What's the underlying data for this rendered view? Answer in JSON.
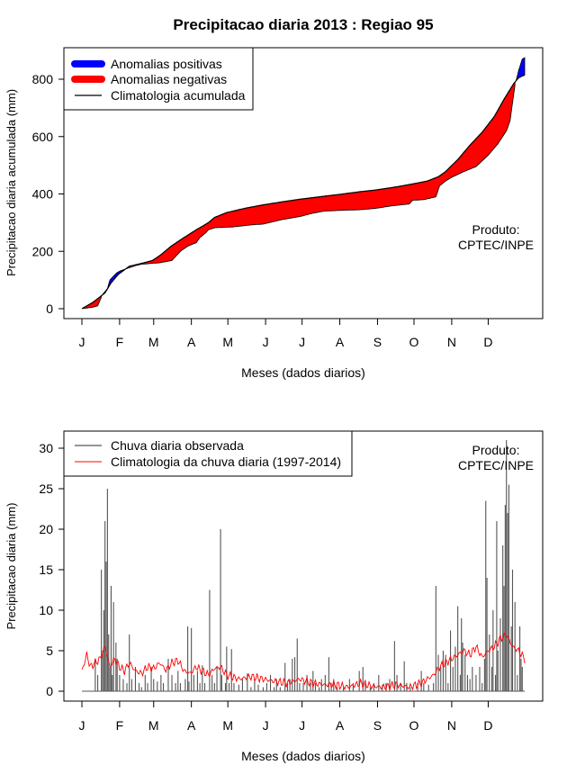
{
  "title": "Precipitacao diaria 2013 : Regiao 95",
  "chart_data": [
    {
      "type": "area",
      "name": "accumulated",
      "xlabel": "Meses (dados diarios)",
      "ylabel": "Precipitacao diaria acumulada (mm)",
      "xlim": [
        1,
        365
      ],
      "ylim": [
        0,
        860
      ],
      "yticks": [
        0,
        200,
        400,
        600,
        800
      ],
      "month_labels": [
        "J",
        "F",
        "M",
        "A",
        "M",
        "J",
        "J",
        "A",
        "S",
        "O",
        "N",
        "D"
      ],
      "legend": {
        "position": "top-left",
        "items": [
          "Anomalias positivas",
          "Anomalias negativas",
          "Climatologia acumulada"
        ]
      },
      "product_label": "Produto:",
      "product_value": "CPTEC/INPE",
      "colors": {
        "positive": "#0000ff",
        "negative": "#ff0000",
        "line": "#000000"
      },
      "climatology_knots": [
        [
          1,
          0
        ],
        [
          10,
          22
        ],
        [
          20,
          55
        ],
        [
          25,
          90
        ],
        [
          31,
          120
        ],
        [
          40,
          148
        ],
        [
          50,
          158
        ],
        [
          59,
          168
        ],
        [
          65,
          185
        ],
        [
          75,
          220
        ],
        [
          85,
          248
        ],
        [
          95,
          275
        ],
        [
          105,
          300
        ],
        [
          110,
          318
        ],
        [
          120,
          335
        ],
        [
          135,
          350
        ],
        [
          150,
          362
        ],
        [
          165,
          372
        ],
        [
          181,
          382
        ],
        [
          200,
          392
        ],
        [
          212,
          398
        ],
        [
          230,
          408
        ],
        [
          243,
          414
        ],
        [
          260,
          425
        ],
        [
          273,
          435
        ],
        [
          285,
          445
        ],
        [
          294,
          460
        ],
        [
          300,
          478
        ],
        [
          310,
          520
        ],
        [
          320,
          570
        ],
        [
          330,
          615
        ],
        [
          340,
          670
        ],
        [
          348,
          730
        ],
        [
          356,
          785
        ],
        [
          360,
          805
        ],
        [
          365,
          815
        ]
      ],
      "observed_knots": [
        [
          1,
          0
        ],
        [
          10,
          5
        ],
        [
          14,
          10
        ],
        [
          18,
          50
        ],
        [
          22,
          70
        ],
        [
          24,
          100
        ],
        [
          28,
          118
        ],
        [
          30,
          126
        ],
        [
          33,
          133
        ],
        [
          38,
          140
        ],
        [
          45,
          150
        ],
        [
          50,
          155
        ],
        [
          59,
          158
        ],
        [
          65,
          160
        ],
        [
          75,
          168
        ],
        [
          82,
          200
        ],
        [
          88,
          218
        ],
        [
          95,
          230
        ],
        [
          98,
          248
        ],
        [
          103,
          265
        ],
        [
          105,
          275
        ],
        [
          110,
          282
        ],
        [
          125,
          285
        ],
        [
          140,
          292
        ],
        [
          150,
          295
        ],
        [
          165,
          310
        ],
        [
          181,
          322
        ],
        [
          190,
          332
        ],
        [
          200,
          340
        ],
        [
          215,
          343
        ],
        [
          230,
          345
        ],
        [
          243,
          350
        ],
        [
          255,
          358
        ],
        [
          270,
          365
        ],
        [
          273,
          378
        ],
        [
          282,
          380
        ],
        [
          292,
          390
        ],
        [
          295,
          428
        ],
        [
          300,
          445
        ],
        [
          305,
          458
        ],
        [
          315,
          478
        ],
        [
          325,
          495
        ],
        [
          335,
          535
        ],
        [
          343,
          575
        ],
        [
          350,
          620
        ],
        [
          353,
          655
        ],
        [
          355,
          718
        ],
        [
          357,
          778
        ],
        [
          360,
          830
        ],
        [
          363,
          870
        ],
        [
          365,
          875
        ]
      ]
    },
    {
      "type": "bar",
      "name": "daily",
      "xlabel": "Meses (dados diarios)",
      "ylabel": "Precipitacao diaria (mm)",
      "xlim": [
        1,
        365
      ],
      "ylim": [
        0,
        31
      ],
      "yticks": [
        0,
        5,
        10,
        15,
        20,
        25,
        30
      ],
      "month_labels": [
        "J",
        "F",
        "M",
        "A",
        "M",
        "J",
        "J",
        "A",
        "S",
        "O",
        "N",
        "D"
      ],
      "legend": {
        "position": "top-left",
        "items": [
          "Chuva diaria observada",
          "Climatologia da chuva diaria (1997-2014)"
        ]
      },
      "product_label": "Produto:",
      "product_value": "CPTEC/INPE",
      "colors": {
        "bars": "#555555",
        "climatology": "#ff0000"
      },
      "bars_by_day": [
        [
          12,
          4
        ],
        [
          14,
          2
        ],
        [
          17,
          15
        ],
        [
          18,
          5
        ],
        [
          19,
          10
        ],
        [
          20,
          21
        ],
        [
          21,
          16
        ],
        [
          22,
          25
        ],
        [
          23,
          7
        ],
        [
          24,
          3
        ],
        [
          25,
          13
        ],
        [
          26,
          2
        ],
        [
          27,
          11
        ],
        [
          29,
          6
        ],
        [
          30,
          4
        ],
        [
          32,
          2
        ],
        [
          35,
          1.5
        ],
        [
          38,
          1
        ],
        [
          40,
          7
        ],
        [
          42,
          1.5
        ],
        [
          45,
          3
        ],
        [
          48,
          1
        ],
        [
          50,
          0.5
        ],
        [
          53,
          2
        ],
        [
          55,
          1
        ],
        [
          58,
          3
        ],
        [
          60,
          1.5
        ],
        [
          63,
          1.2
        ],
        [
          66,
          2
        ],
        [
          68,
          1
        ],
        [
          72,
          4
        ],
        [
          75,
          2
        ],
        [
          78,
          1
        ],
        [
          80,
          2.5
        ],
        [
          82,
          1
        ],
        [
          86,
          1.5
        ],
        [
          88,
          8
        ],
        [
          89,
          1.2
        ],
        [
          91,
          7.8
        ],
        [
          93,
          2
        ],
        [
          96,
          2.5
        ],
        [
          98,
          1
        ],
        [
          100,
          3.2
        ],
        [
          102,
          1
        ],
        [
          106,
          12.5
        ],
        [
          108,
          2
        ],
        [
          110,
          1
        ],
        [
          112,
          3
        ],
        [
          115,
          20
        ],
        [
          116,
          2
        ],
        [
          119,
          1
        ],
        [
          120,
          5.5
        ],
        [
          122,
          1
        ],
        [
          124,
          5.2
        ],
        [
          126,
          1
        ],
        [
          130,
          0.8
        ],
        [
          133,
          1.5
        ],
        [
          137,
          2.2
        ],
        [
          140,
          0.5
        ],
        [
          143,
          1.5
        ],
        [
          146,
          0.8
        ],
        [
          150,
          0.5
        ],
        [
          153,
          1
        ],
        [
          156,
          2
        ],
        [
          159,
          0.5
        ],
        [
          161,
          1.5
        ],
        [
          164,
          0.5
        ],
        [
          168,
          3.5
        ],
        [
          170,
          1
        ],
        [
          172,
          1.5
        ],
        [
          174,
          4
        ],
        [
          176,
          4.2
        ],
        [
          178,
          6.5
        ],
        [
          180,
          1
        ],
        [
          183,
          1
        ],
        [
          186,
          2
        ],
        [
          189,
          1
        ],
        [
          191,
          2.5
        ],
        [
          193,
          1
        ],
        [
          196,
          0.5
        ],
        [
          198,
          1.5
        ],
        [
          201,
          2
        ],
        [
          204,
          4.2
        ],
        [
          206,
          1
        ],
        [
          208,
          1.5
        ],
        [
          211,
          0.5
        ],
        [
          216,
          0.5
        ],
        [
          221,
          1.5
        ],
        [
          224,
          1
        ],
        [
          229,
          2.5
        ],
        [
          232,
          3
        ],
        [
          234,
          1
        ],
        [
          238,
          0.5
        ],
        [
          241,
          1
        ],
        [
          245,
          2
        ],
        [
          248,
          0.8
        ],
        [
          251,
          1
        ],
        [
          254,
          1.5
        ],
        [
          258,
          6.2
        ],
        [
          260,
          2
        ],
        [
          263,
          1
        ],
        [
          266,
          3.7
        ],
        [
          268,
          1
        ],
        [
          271,
          0.5
        ],
        [
          277,
          1
        ],
        [
          280,
          2.5
        ],
        [
          282,
          1
        ],
        [
          286,
          0.8
        ],
        [
          290,
          1
        ],
        [
          292,
          13
        ],
        [
          294,
          4.5
        ],
        [
          296,
          3
        ],
        [
          298,
          5
        ],
        [
          300,
          4.5
        ],
        [
          302,
          1
        ],
        [
          304,
          7.5
        ],
        [
          306,
          3
        ],
        [
          308,
          5.5
        ],
        [
          310,
          10.5
        ],
        [
          312,
          2
        ],
        [
          313,
          9
        ],
        [
          314,
          6
        ],
        [
          316,
          4.5
        ],
        [
          318,
          2
        ],
        [
          320,
          1.5
        ],
        [
          322,
          3
        ],
        [
          325,
          2
        ],
        [
          328,
          3
        ],
        [
          330,
          1
        ],
        [
          332,
          4
        ],
        [
          333,
          23.5
        ],
        [
          334,
          14
        ],
        [
          336,
          7
        ],
        [
          338,
          3
        ],
        [
          339,
          10
        ],
        [
          341,
          2
        ],
        [
          342,
          21
        ],
        [
          343,
          5
        ],
        [
          345,
          9
        ],
        [
          347,
          18
        ],
        [
          348,
          13
        ],
        [
          349,
          23
        ],
        [
          350,
          31
        ],
        [
          351,
          22
        ],
        [
          352,
          25.5
        ],
        [
          354,
          8
        ],
        [
          355,
          15
        ],
        [
          357,
          11
        ],
        [
          359,
          2
        ],
        [
          361,
          8
        ],
        [
          362,
          4
        ],
        [
          363,
          3
        ]
      ],
      "climatology_knots": [
        [
          1,
          2.5
        ],
        [
          5,
          4.5
        ],
        [
          8,
          3
        ],
        [
          12,
          3.5
        ],
        [
          16,
          4
        ],
        [
          20,
          5.5
        ],
        [
          24,
          3
        ],
        [
          28,
          4
        ],
        [
          32,
          3
        ],
        [
          36,
          2.5
        ],
        [
          40,
          3.5
        ],
        [
          45,
          2.5
        ],
        [
          50,
          2.2
        ],
        [
          55,
          3
        ],
        [
          60,
          2.8
        ],
        [
          65,
          3.5
        ],
        [
          70,
          2.6
        ],
        [
          75,
          3.5
        ],
        [
          80,
          3.8
        ],
        [
          85,
          2.5
        ],
        [
          90,
          2.2
        ],
        [
          95,
          3
        ],
        [
          100,
          2.5
        ],
        [
          105,
          2
        ],
        [
          110,
          2.8
        ],
        [
          115,
          3
        ],
        [
          120,
          2
        ],
        [
          130,
          1.5
        ],
        [
          140,
          1.8
        ],
        [
          150,
          1.5
        ],
        [
          160,
          1.2
        ],
        [
          170,
          1
        ],
        [
          180,
          1.5
        ],
        [
          190,
          1
        ],
        [
          200,
          0.8
        ],
        [
          210,
          0.8
        ],
        [
          220,
          0.5
        ],
        [
          230,
          1
        ],
        [
          240,
          0.6
        ],
        [
          250,
          0.5
        ],
        [
          260,
          0.8
        ],
        [
          270,
          0.5
        ],
        [
          280,
          1
        ],
        [
          285,
          1.5
        ],
        [
          290,
          2
        ],
        [
          295,
          3
        ],
        [
          300,
          3.5
        ],
        [
          305,
          4
        ],
        [
          310,
          4.5
        ],
        [
          315,
          5
        ],
        [
          320,
          4.5
        ],
        [
          325,
          5.5
        ],
        [
          330,
          4.2
        ],
        [
          335,
          5
        ],
        [
          340,
          5.5
        ],
        [
          345,
          6.5
        ],
        [
          350,
          7
        ],
        [
          355,
          5.5
        ],
        [
          360,
          5
        ],
        [
          365,
          4
        ]
      ]
    }
  ]
}
